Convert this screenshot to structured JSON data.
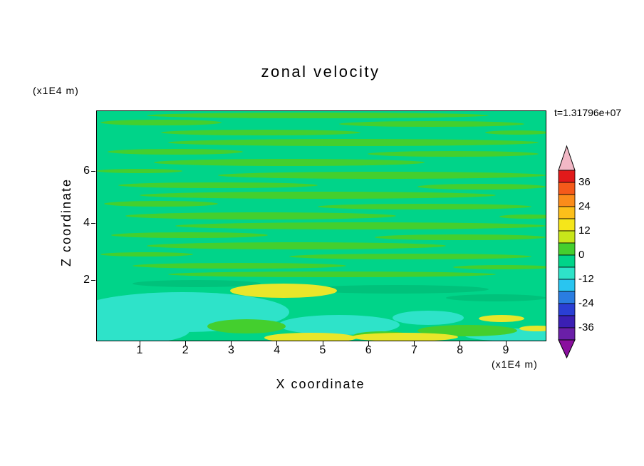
{
  "title": "zonal velocity",
  "annotations": {
    "time_label": "t=1.31796e+07"
  },
  "axes": {
    "x": {
      "label": "X coordinate",
      "unit": "(x1E4 m)",
      "ticks": [
        "1",
        "2",
        "3",
        "4",
        "5",
        "6",
        "7",
        "8",
        "9"
      ]
    },
    "y": {
      "label": "Z coordinate",
      "unit": "(x1E4 m)",
      "ticks": [
        "6",
        "4",
        "2"
      ]
    }
  },
  "colorbar": {
    "labels": [
      "36",
      "24",
      "12",
      "0",
      "-12",
      "-24",
      "-36"
    ],
    "values": [
      36,
      24,
      12,
      0,
      -12,
      -24,
      -36
    ],
    "segment_colors_top_to_bottom": [
      "#e11a1a",
      "#f55a1a",
      "#fb8c1a",
      "#fcbf1a",
      "#f5e61a",
      "#c8e61a",
      "#44cf2e",
      "#00d489",
      "#2ee3c9",
      "#29c5f0",
      "#2a7de1",
      "#2a3fd4",
      "#3b1fb4",
      "#6a1fa8"
    ],
    "over_arrow_color": "#f2b8c6",
    "under_arrow_color": "#8a0f9e"
  },
  "chart_data": {
    "type": "filled_contour",
    "title": "zonal velocity",
    "xlabel": "X coordinate",
    "x_unit": "(x1E4 m)",
    "ylabel": "Z coordinate",
    "y_unit": "(x1E4 m)",
    "x_ticks": [
      1,
      2,
      3,
      4,
      5,
      6,
      7,
      8,
      9
    ],
    "y_ticks": [
      2,
      4,
      6
    ],
    "time_annotation": "t=1.31796e+07",
    "colorbar_tick_values": [
      36,
      24,
      12,
      0,
      -12,
      -24,
      -36
    ],
    "contour_interval": 6,
    "palette_top_to_bottom": [
      "#e11a1a",
      "#f55a1a",
      "#fb8c1a",
      "#fcbf1a",
      "#f5e61a",
      "#c8e61a",
      "#44cf2e",
      "#00d489",
      "#2ee3c9",
      "#29c5f0",
      "#2a7de1",
      "#2a3fd4",
      "#3b1fb4",
      "#6a1fa8"
    ],
    "over_color": "#f2b8c6",
    "under_color": "#8a0f9e",
    "field_summary": "Field is dominated by values near 0 (greens, roughly -6 to +6) arranged in thin horizontal bands across the whole domain; near the bottom boundary there are broader cyan patches (about -12 to -6) and elongated yellow patches (about +12 to +24), strongest under x=4, x=6-7 and near x=9."
  }
}
